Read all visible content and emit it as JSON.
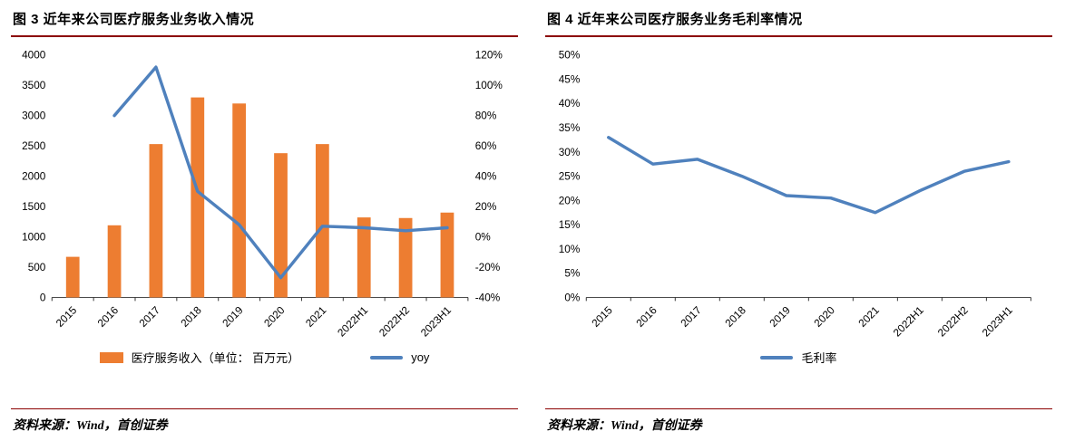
{
  "figures": [
    {
      "source": "资料来源：Wind，首创证券"
    },
    {
      "source": "资料来源：Wind，首创证券"
    }
  ],
  "colors": {
    "bar_orange": "#ED7D31",
    "line_blue": "#4F81BD",
    "rule_dark_red": "#8b0000",
    "axis_black": "#333333"
  },
  "chart_data": [
    {
      "type": "bar",
      "title": "图 3 近年来公司医疗服务业务收入情况",
      "categories": [
        "2015",
        "2016",
        "2017",
        "2018",
        "2019",
        "2020",
        "2021",
        "2022H1",
        "2022H2",
        "2023H1"
      ],
      "series": [
        {
          "name": "医疗服务收入（单位： 百万元）",
          "type": "bar",
          "axis": "left",
          "color": "#ED7D31",
          "values": [
            670,
            1190,
            2530,
            3300,
            3200,
            2380,
            2530,
            1320,
            1310,
            1400
          ]
        },
        {
          "name": "yoy",
          "type": "line",
          "axis": "right",
          "color": "#4F81BD",
          "values": [
            null,
            80,
            112,
            30,
            8,
            -27,
            7,
            6,
            4,
            6
          ]
        }
      ],
      "left_axis": {
        "min": 0,
        "max": 4000,
        "step": 500,
        "suffix": ""
      },
      "right_axis": {
        "min": -40,
        "max": 120,
        "step": 20,
        "suffix": "%"
      },
      "grid": false,
      "legend_position": "bottom",
      "source": "资料来源：Wind，首创证券"
    },
    {
      "type": "line",
      "title": "图 4 近年来公司医疗服务业务毛利率情况",
      "categories": [
        "2015",
        "2016",
        "2017",
        "2018",
        "2019",
        "2020",
        "2021",
        "2022H1",
        "2022H2",
        "2023H1"
      ],
      "series": [
        {
          "name": "毛利率",
          "type": "line",
          "axis": "left",
          "color": "#4F81BD",
          "values": [
            33,
            27.5,
            28.5,
            25,
            21,
            20.5,
            17.5,
            22,
            26,
            28
          ]
        }
      ],
      "left_axis": {
        "min": 0,
        "max": 50,
        "step": 5,
        "suffix": "%"
      },
      "grid": false,
      "legend_position": "bottom",
      "source": "资料来源：Wind，首创证券"
    }
  ]
}
